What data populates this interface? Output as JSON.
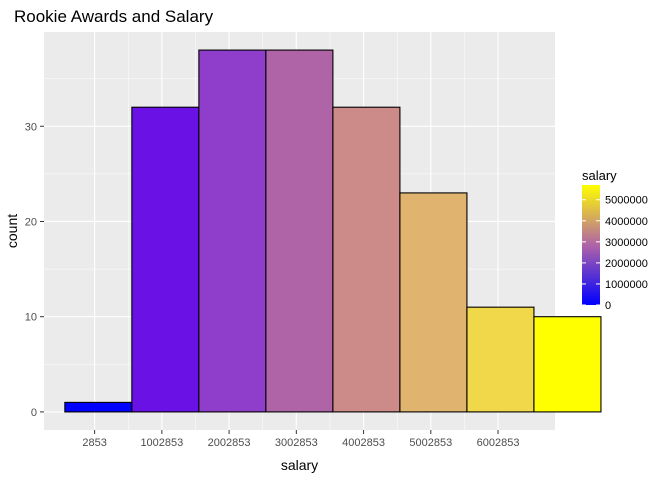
{
  "chart_data": {
    "type": "bar",
    "title": "Rookie Awards and Salary",
    "xlabel": "salary",
    "ylabel": "count",
    "x_ticks": [
      "2853",
      "1002853",
      "2002853",
      "3002853",
      "4002853",
      "5002853",
      "6002853"
    ],
    "x_tick_values": [
      2853,
      1002853,
      2002853,
      3002853,
      4002853,
      5002853,
      6002853
    ],
    "bins": [
      {
        "center": 2853,
        "count": 1,
        "fill": "#0000FF"
      },
      {
        "center": 1002853,
        "count": 32,
        "fill": "#6A12E6"
      },
      {
        "center": 2002853,
        "count": 38,
        "fill": "#8E3ECB"
      },
      {
        "center": 3002853,
        "count": 38,
        "fill": "#B064A8"
      },
      {
        "center": 4002853,
        "count": 32,
        "fill": "#CC8A88"
      },
      {
        "center": 5002853,
        "count": 23,
        "fill": "#E0B46E"
      },
      {
        "center": 6002853,
        "count": 11,
        "fill": "#F0D84A"
      },
      {
        "center": 7002853,
        "count": 10,
        "fill": "#FFFF00"
      }
    ],
    "bin_width": 1000000,
    "xlim": [
      -750000,
      6850000
    ],
    "y_ticks": [
      0,
      10,
      20,
      30
    ],
    "ylim": [
      -1.9,
      39.9
    ],
    "grid": true,
    "legend": {
      "title": "salary",
      "placement": "right",
      "gradient_low": "#0000FF",
      "gradient_mid": "#B064A8",
      "gradient_high": "#FFFF00",
      "labels": [
        "0",
        "1000000",
        "2000000",
        "3000000",
        "4000000",
        "5000000"
      ],
      "label_values": [
        0,
        1000000,
        2000000,
        3000000,
        4000000,
        5000000
      ],
      "range": [
        0,
        5700000
      ]
    }
  },
  "colors": {
    "panel_background": "#EBEBEB",
    "grid_major": "#FFFFFF",
    "bar_outline": "#000000"
  }
}
